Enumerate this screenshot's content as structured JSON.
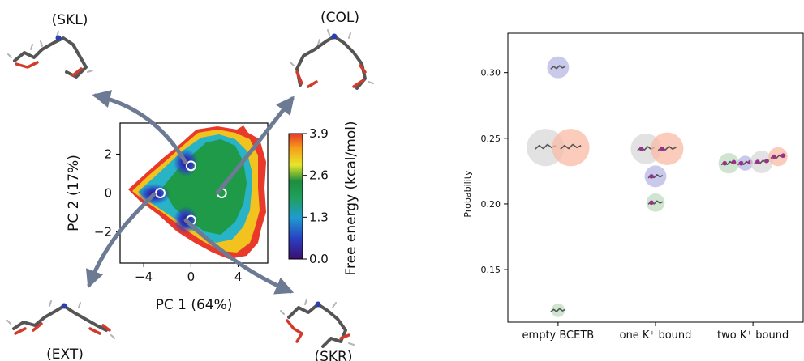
{
  "left_panel": {
    "state_labels": {
      "skl": "(SKL)",
      "col": "(COL)",
      "ext": "(EXT)",
      "skr": "(SKR)"
    },
    "colorbar": {
      "label": "Free energy (kcal/mol)",
      "ticks": [
        "0.0",
        "1.3",
        "2.6",
        "3.9"
      ]
    }
  },
  "chart_data": [
    {
      "type": "heatmap",
      "xlabel": "PC 1 (64%)",
      "ylabel": "PC 2  (17%)",
      "xlim": [
        -6,
        6.5
      ],
      "ylim": [
        -3.6,
        3.6
      ],
      "xticks": [
        "−4",
        "0",
        "4"
      ],
      "yticks": [
        "2",
        "0",
        "−2"
      ],
      "value_range": [
        0.0,
        3.9
      ],
      "colormap": [
        "#3b0f6f",
        "#2a3ec2",
        "#1f9bd0",
        "#20a060",
        "#1e8e3e",
        "#e6e62a",
        "#f7a11a",
        "#e8392b"
      ],
      "minima": [
        {
          "x": -2.6,
          "y": 0.0
        },
        {
          "x": 0.0,
          "y": 1.4
        },
        {
          "x": 0.0,
          "y": -1.4
        },
        {
          "x": 2.6,
          "y": 0.0
        }
      ]
    },
    {
      "type": "scatter",
      "ylabel": "Probability",
      "ylim": [
        0.11,
        0.33
      ],
      "yticks": [
        "0.15",
        "0.20",
        "0.25",
        "0.30"
      ],
      "categories": [
        "empty BCETB",
        "one K⁺ bound",
        "two K⁺ bound"
      ],
      "colors": {
        "grey": "#d8d8d8",
        "pink": "#f9b9a4",
        "purple": "#b7b7e4",
        "green": "#bfdcbf"
      },
      "points": [
        {
          "category": "empty BCETB",
          "y": 0.304,
          "color": "purple",
          "size": 0.32
        },
        {
          "category": "empty BCETB",
          "y": 0.243,
          "color": "grey",
          "size": 0.55
        },
        {
          "category": "empty BCETB",
          "y": 0.243,
          "color": "pink",
          "size": 0.55
        },
        {
          "category": "empty BCETB",
          "y": 0.119,
          "color": "green",
          "size": 0.2
        },
        {
          "category": "one K⁺ bound",
          "y": 0.242,
          "color": "grey",
          "size": 0.45
        },
        {
          "category": "one K⁺ bound",
          "y": 0.242,
          "color": "pink",
          "size": 0.48
        },
        {
          "category": "one K⁺ bound",
          "y": 0.221,
          "color": "purple",
          "size": 0.32
        },
        {
          "category": "one K⁺ bound",
          "y": 0.201,
          "color": "green",
          "size": 0.27
        },
        {
          "category": "two K⁺ bound",
          "y": 0.231,
          "color": "green",
          "size": 0.3
        },
        {
          "category": "two K⁺ bound",
          "y": 0.231,
          "color": "purple",
          "size": 0.22
        },
        {
          "category": "two K⁺ bound",
          "y": 0.232,
          "color": "grey",
          "size": 0.33
        },
        {
          "category": "two K⁺ bound",
          "y": 0.236,
          "color": "pink",
          "size": 0.28
        }
      ]
    }
  ]
}
